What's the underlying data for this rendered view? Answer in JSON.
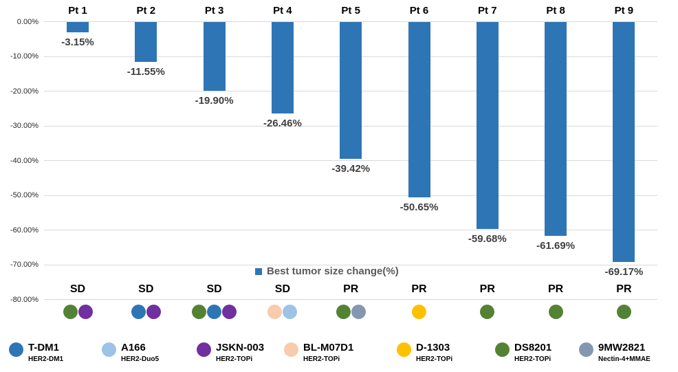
{
  "chart_data": {
    "type": "bar",
    "title": "",
    "legend": {
      "label": "Best tumor size change(%)",
      "position": "bottom-center",
      "marker_color": "#2E75B6"
    },
    "categories": [
      "Pt 1",
      "Pt 2",
      "Pt 3",
      "Pt 4",
      "Pt 5",
      "Pt 6",
      "Pt 7",
      "Pt 8",
      "Pt 9"
    ],
    "values": [
      -3.15,
      -11.55,
      -19.9,
      -26.46,
      -39.42,
      -50.65,
      -59.68,
      -61.69,
      -69.17
    ],
    "value_labels": [
      "-3.15%",
      "-11.55%",
      "-19.90%",
      "-26.46%",
      "-39.42%",
      "-50.65%",
      "-59.68%",
      "-61.69%",
      "-69.17%"
    ],
    "responses": [
      "SD",
      "SD",
      "SD",
      "SD",
      "PR",
      "PR",
      "PR",
      "PR",
      "PR"
    ],
    "treatments_by_patient": [
      [
        "DS8201",
        "JSKN-003"
      ],
      [
        "T-DM1",
        "JSKN-003"
      ],
      [
        "DS8201",
        "T-DM1",
        "JSKN-003"
      ],
      [
        "BL-M07D1",
        "A166"
      ],
      [
        "DS8201",
        "9MW2821"
      ],
      [
        "D-1303"
      ],
      [
        "DS8201"
      ],
      [
        "DS8201"
      ],
      [
        "DS8201"
      ]
    ],
    "xlabel": "",
    "ylabel": "",
    "ylim": [
      -80,
      0
    ],
    "yticks": [
      {
        "value": 0,
        "label": "0.00%"
      },
      {
        "value": -10,
        "label": "-10.00%"
      },
      {
        "value": -20,
        "label": "-20.00%"
      },
      {
        "value": -30,
        "label": "-30.00%"
      },
      {
        "value": -40,
        "label": "-40.00%"
      },
      {
        "value": -50,
        "label": "-50.00%"
      },
      {
        "value": -60,
        "label": "-60.00%"
      },
      {
        "value": -70,
        "label": "-70.00%"
      },
      {
        "value": -80,
        "label": "-80.00%"
      }
    ],
    "grid": true,
    "bar_color": "#2E75B6"
  },
  "treatment_legend": [
    {
      "name": "T-DM1",
      "sub_label": "HER2-DM1",
      "color": "#2E75B6"
    },
    {
      "name": "A166",
      "sub_label": "HER2-Duo5",
      "color": "#9DC3E6"
    },
    {
      "name": "JSKN-003",
      "sub_label": "HER2-TOPi",
      "color": "#7030A0"
    },
    {
      "name": "BL-M07D1",
      "sub_label": "HER2-TOPi",
      "color": "#F8CBAD"
    },
    {
      "name": "D-1303",
      "sub_label": "HER2-TOPi",
      "color": "#FFC000"
    },
    {
      "name": "DS8201",
      "sub_label": "HER2-TOPi",
      "color": "#548235"
    },
    {
      "name": "9MW2821",
      "sub_label": "Nectin-4+MMAE",
      "color": "#8497B0"
    }
  ],
  "colors": {
    "gridline": "#D9D9D9",
    "value_label_text": "#404040",
    "tick_label_text": "#262626",
    "series_legend_text": "#595959"
  }
}
